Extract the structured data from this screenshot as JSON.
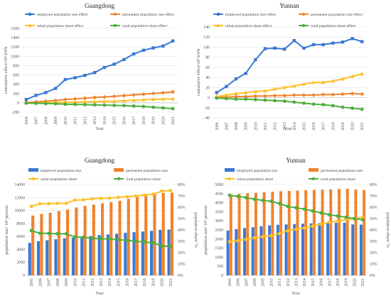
{
  "colors": {
    "employed": "#3a78d4",
    "permanent": "#f0832d",
    "urban": "#fec02a",
    "rural": "#4caf3c"
  },
  "chart_data": [
    {
      "id": "gd_effects",
      "type": "line",
      "title": "Guangdong",
      "xlabel": "Year",
      "ylabel": "cumulative effect/10⁸ kWh",
      "ylim": [
        -200,
        1600
      ],
      "yticks": [
        -200,
        0,
        200,
        400,
        600,
        800,
        1000,
        1200,
        1400,
        1600
      ],
      "x": [
        "2006",
        "2007",
        "2008",
        "2009",
        "2010",
        "2011",
        "2012",
        "2013",
        "2014",
        "2015",
        "2016",
        "2017",
        "2018",
        "2019",
        "2020",
        "2021"
      ],
      "legend_position": "top",
      "series": [
        {
          "name": "employed population size effect",
          "color": "#3a78d4",
          "marker": "square",
          "values": [
            70,
            160,
            220,
            310,
            500,
            540,
            590,
            650,
            760,
            830,
            930,
            1050,
            1130,
            1180,
            1220,
            1330
          ]
        },
        {
          "name": "permanent population size effect",
          "color": "#f0832d",
          "marker": "diamond",
          "values": [
            5,
            20,
            35,
            50,
            70,
            85,
            100,
            115,
            125,
            140,
            155,
            170,
            185,
            200,
            215,
            235
          ]
        },
        {
          "name": "urban population share effect",
          "color": "#fec02a",
          "marker": "triangle",
          "values": [
            -5,
            -5,
            0,
            5,
            10,
            15,
            20,
            25,
            30,
            35,
            45,
            55,
            65,
            75,
            80,
            85
          ]
        },
        {
          "name": "rural population share effect",
          "color": "#4caf3c",
          "marker": "circle",
          "values": [
            -5,
            -10,
            -15,
            -20,
            -30,
            -35,
            -40,
            -45,
            -50,
            -55,
            -60,
            -70,
            -80,
            -95,
            -110,
            -125
          ]
        }
      ]
    },
    {
      "id": "yn_effects",
      "type": "line",
      "title": "Yunnan",
      "xlabel": "Year",
      "ylabel": "cumulative effect/10⁸ kWh",
      "ylim": [
        -40,
        140
      ],
      "yticks": [
        -40,
        -20,
        0,
        20,
        40,
        60,
        80,
        100,
        120,
        140
      ],
      "x": [
        "2006",
        "2007",
        "2008",
        "2009",
        "2010",
        "2011",
        "2012",
        "2013",
        "2014",
        "2015",
        "2016",
        "2017",
        "2018",
        "2019",
        "2020",
        "2021"
      ],
      "legend_position": "top",
      "series": [
        {
          "name": "employed population size effect",
          "color": "#3a78d4",
          "marker": "square",
          "values": [
            10,
            22,
            37,
            48,
            75,
            97,
            98,
            96,
            113,
            98,
            105,
            105,
            108,
            110,
            117,
            111
          ]
        },
        {
          "name": "permanent population size effect",
          "color": "#f0832d",
          "marker": "diamond",
          "values": [
            1,
            1,
            2,
            2,
            3,
            3,
            4,
            4,
            5,
            5,
            5,
            6,
            6,
            7,
            8,
            7
          ]
        },
        {
          "name": "urban population share effect",
          "color": "#fec02a",
          "marker": "triangle",
          "values": [
            2,
            5,
            8,
            10,
            12,
            13,
            17,
            20,
            23,
            27,
            30,
            30,
            33,
            37,
            42,
            47
          ]
        },
        {
          "name": "rural population share effect",
          "color": "#4caf3c",
          "marker": "circle",
          "values": [
            -1,
            -2,
            -3,
            -3,
            -4,
            -5,
            -6,
            -7,
            -9,
            -11,
            -13,
            -14,
            -16,
            -19,
            -21,
            -23
          ]
        }
      ]
    },
    {
      "id": "gd_population",
      "type": "bar",
      "title": "Guangdong",
      "xlabel": "Year",
      "ylabel": "population size/ 10⁴ persons",
      "y2label": "population share/ %",
      "ylim": [
        0,
        14000
      ],
      "yticks": [
        0,
        2000,
        4000,
        6000,
        8000,
        10000,
        12000,
        14000
      ],
      "y2lim": [
        0,
        80
      ],
      "y2ticks": [
        "0%",
        "10%",
        "20%",
        "30%",
        "40%",
        "50%",
        "60%",
        "70%",
        "80%"
      ],
      "categories": [
        "2005",
        "2006",
        "2007",
        "2008",
        "2009",
        "2010",
        "2011",
        "2012",
        "2013",
        "2014",
        "2015",
        "2016",
        "2017",
        "2018",
        "2019",
        "2020",
        "2021"
      ],
      "legend_position": "top",
      "series": [
        {
          "name": "employed population size",
          "type": "bar",
          "color": "#3a78d4",
          "values": [
            5000,
            5250,
            5400,
            5550,
            5700,
            5800,
            5950,
            6050,
            6200,
            6300,
            6400,
            6550,
            6650,
            6750,
            6850,
            7000,
            7050
          ]
        },
        {
          "name": "permanent population size",
          "type": "bar",
          "color": "#f0832d",
          "values": [
            9200,
            9450,
            9650,
            9900,
            10150,
            10450,
            10700,
            10900,
            11100,
            11300,
            11500,
            11800,
            12100,
            12300,
            12500,
            12700,
            12750
          ]
        },
        {
          "name": "urban population share",
          "type": "line",
          "axis": "right",
          "color": "#fec02a",
          "values": [
            60.7,
            63.0,
            63.1,
            63.4,
            63.4,
            66.2,
            66.5,
            67.4,
            67.8,
            68.0,
            68.7,
            69.2,
            69.9,
            70.7,
            71.4,
            74.2,
            74.6
          ]
        },
        {
          "name": "rural population share",
          "type": "line",
          "axis": "right",
          "color": "#4caf3c",
          "values": [
            39.3,
            37.0,
            36.9,
            36.6,
            36.6,
            33.8,
            33.5,
            32.6,
            32.2,
            32.0,
            31.3,
            30.8,
            30.1,
            29.3,
            28.6,
            25.8,
            25.4
          ]
        }
      ]
    },
    {
      "id": "yn_population",
      "type": "bar",
      "title": "Yunnan",
      "xlabel": "Year",
      "ylabel": "population size/ 10⁴ persons",
      "y2label": "population share/ %",
      "ylim": [
        0,
        5000
      ],
      "yticks": [
        0,
        500,
        1000,
        1500,
        2000,
        2500,
        3000,
        3500,
        4000,
        4500,
        5000
      ],
      "y2lim": [
        0,
        80
      ],
      "y2ticks": [
        "0%",
        "10%",
        "20%",
        "30%",
        "40%",
        "50%",
        "60%",
        "70%",
        "80%"
      ],
      "categories": [
        "2005",
        "2006",
        "2007",
        "2008",
        "2009",
        "2010",
        "2011",
        "2012",
        "2013",
        "2014",
        "2015",
        "2016",
        "2017",
        "2018",
        "2019",
        "2020",
        "2021"
      ],
      "legend_position": "top",
      "series": [
        {
          "name": "employed population size",
          "type": "bar",
          "color": "#3a78d4",
          "values": [
            2460,
            2540,
            2600,
            2650,
            2700,
            2750,
            2780,
            2800,
            2820,
            2840,
            2860,
            2870,
            2880,
            2890,
            2900,
            2800,
            2790
          ]
        },
        {
          "name": "permanent population size",
          "type": "bar",
          "color": "#f0832d",
          "values": [
            4450,
            4480,
            4520,
            4540,
            4570,
            4600,
            4630,
            4650,
            4660,
            4690,
            4700,
            4720,
            4730,
            4750,
            4770,
            4720,
            4690
          ]
        },
        {
          "name": "urban population share",
          "type": "line",
          "axis": "right",
          "color": "#fec02a",
          "values": [
            29.5,
            30.5,
            31.6,
            33.0,
            34.0,
            34.8,
            36.8,
            39.3,
            40.5,
            41.7,
            43.3,
            45.0,
            46.7,
            47.8,
            48.9,
            50.0,
            51.1
          ]
        },
        {
          "name": "rural population share",
          "type": "line",
          "axis": "right",
          "color": "#4caf3c",
          "values": [
            70.5,
            69.5,
            68.4,
            67.0,
            66.0,
            65.2,
            63.2,
            60.7,
            59.5,
            58.3,
            56.7,
            55.0,
            53.3,
            52.2,
            51.1,
            50.0,
            48.9
          ]
        }
      ]
    }
  ]
}
